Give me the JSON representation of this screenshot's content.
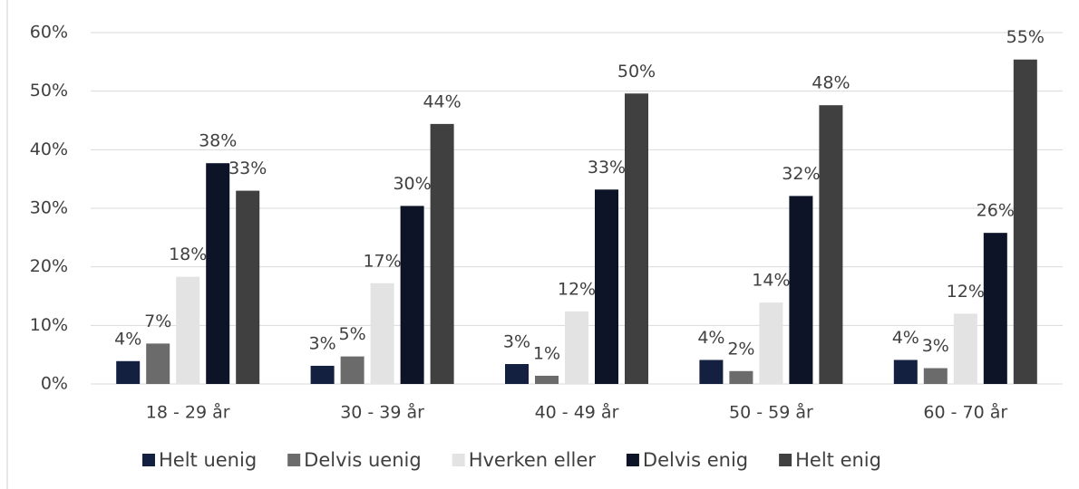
{
  "chart_data": {
    "type": "bar",
    "categories": [
      "18 - 29 år",
      "30 - 39 år",
      "40 - 49 år",
      "50 - 59 år",
      "60 - 70 år"
    ],
    "series": [
      {
        "name": "Helt uenig",
        "color": "#142040",
        "values": [
          3.9,
          3.1,
          3.4,
          4.1,
          4.1
        ],
        "value_labels": [
          "4%",
          "3%",
          "3%",
          "4%",
          "4%"
        ]
      },
      {
        "name": "Delvis uenig",
        "color": "#6b6b6b",
        "values": [
          6.9,
          4.7,
          1.4,
          2.2,
          2.7
        ],
        "value_labels": [
          "7%",
          "5%",
          "1%",
          "2%",
          "3%"
        ]
      },
      {
        "name": "Hverken eller",
        "color": "#e3e3e3",
        "values": [
          18.3,
          17.2,
          12.4,
          13.9,
          12.0
        ],
        "value_labels": [
          "18%",
          "17%",
          "12%",
          "14%",
          "12%"
        ]
      },
      {
        "name": "Delvis enig",
        "color": "#0d1428",
        "values": [
          37.7,
          30.4,
          33.2,
          32.1,
          25.8
        ],
        "value_labels": [
          "38%",
          "30%",
          "33%",
          "32%",
          "26%"
        ]
      },
      {
        "name": "Helt enig",
        "color": "#404040",
        "values": [
          33.0,
          44.4,
          49.6,
          47.6,
          55.4
        ],
        "value_labels": [
          "33%",
          "44%",
          "50%",
          "48%",
          "55%"
        ]
      }
    ],
    "ylim": [
      0,
      60
    ],
    "yticks": [
      {
        "value": 0,
        "label": "0%"
      },
      {
        "value": 10,
        "label": "10%"
      },
      {
        "value": 20,
        "label": "20%"
      },
      {
        "value": 30,
        "label": "30%"
      },
      {
        "value": 40,
        "label": "40%"
      },
      {
        "value": 50,
        "label": "50%"
      },
      {
        "value": 60,
        "label": "60%"
      }
    ],
    "grid": true,
    "legend": "bottom"
  }
}
